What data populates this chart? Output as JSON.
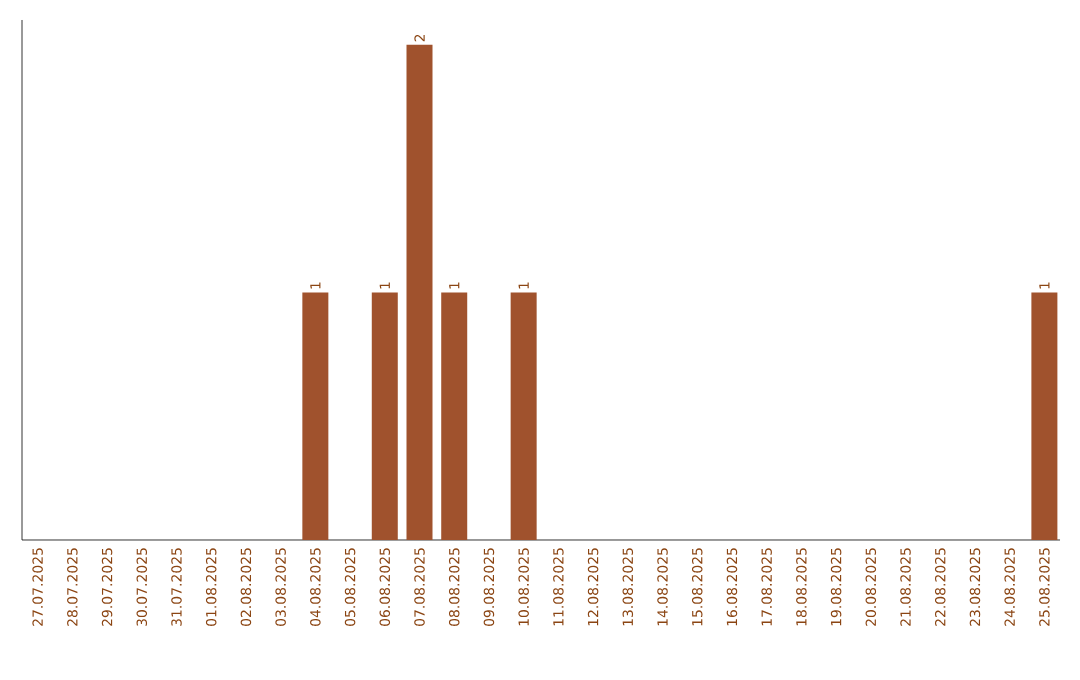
{
  "chart_data": {
    "type": "bar",
    "categories": [
      "27.07.2025",
      "28.07.2025",
      "29.07.2025",
      "30.07.2025",
      "31.07.2025",
      "01.08.2025",
      "02.08.2025",
      "03.08.2025",
      "04.08.2025",
      "05.08.2025",
      "06.08.2025",
      "07.08.2025",
      "08.08.2025",
      "09.08.2025",
      "10.08.2025",
      "11.08.2025",
      "12.08.2025",
      "13.08.2025",
      "14.08.2025",
      "15.08.2025",
      "16.08.2025",
      "17.08.2025",
      "18.08.2025",
      "19.08.2025",
      "20.08.2025",
      "21.08.2025",
      "22.08.2025",
      "23.08.2025",
      "24.08.2025",
      "25.08.2025"
    ],
    "values": [
      0,
      0,
      0,
      0,
      0,
      0,
      0,
      0,
      1,
      0,
      1,
      2,
      1,
      0,
      1,
      0,
      0,
      0,
      0,
      0,
      0,
      0,
      0,
      0,
      0,
      0,
      0,
      0,
      0,
      1
    ],
    "value_labels": [
      null,
      null,
      null,
      null,
      null,
      null,
      null,
      null,
      "1",
      null,
      "1",
      "2",
      "1",
      null,
      "1",
      null,
      null,
      null,
      null,
      null,
      null,
      null,
      null,
      null,
      null,
      null,
      null,
      null,
      null,
      "1"
    ],
    "color": "#a0522d",
    "ylim": [
      0,
      2.1
    ]
  }
}
